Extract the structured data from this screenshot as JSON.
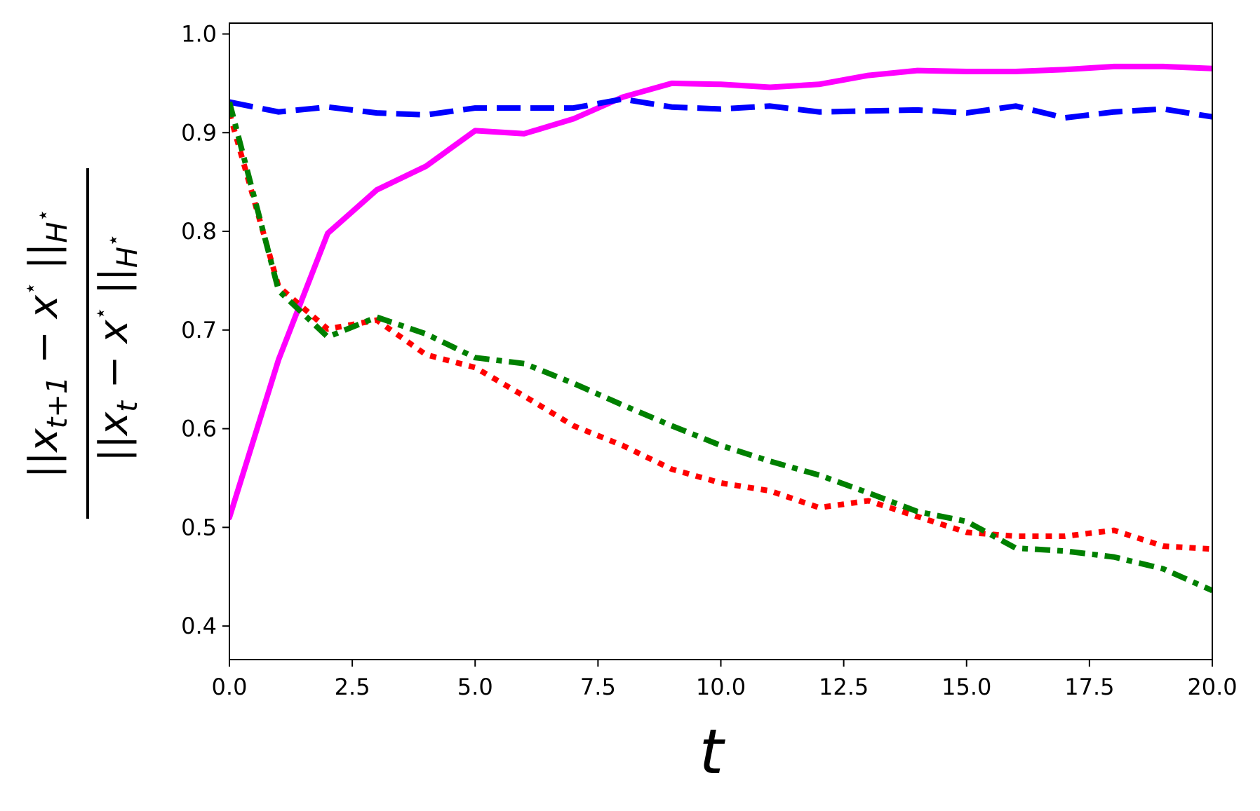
{
  "chart_data": {
    "type": "line",
    "title": "",
    "xlabel": "t",
    "ylabel": {
      "numerator": "||x_{t+1} − x*||_{H*}",
      "denominator": "||x_t − x*||_{H*}"
    },
    "xlim": [
      0,
      20
    ],
    "ylim": [
      0.366,
      1.011
    ],
    "xticks": [
      "0.0",
      "2.5",
      "5.0",
      "7.5",
      "10.0",
      "12.5",
      "15.0",
      "17.5",
      "20.0"
    ],
    "yticks": [
      "0.4",
      "0.5",
      "0.6",
      "0.7",
      "0.8",
      "0.9",
      "1.0"
    ],
    "grid": false,
    "x": [
      0,
      1,
      2,
      3,
      4,
      5,
      6,
      7,
      8,
      9,
      10,
      11,
      12,
      13,
      14,
      15,
      16,
      17,
      18,
      19,
      20
    ],
    "series": [
      {
        "color": "#ff00ff",
        "style": "solid",
        "values": [
          0.51,
          0.67,
          0.798,
          0.842,
          0.866,
          0.902,
          0.899,
          0.914,
          0.936,
          0.95,
          0.949,
          0.946,
          0.949,
          0.958,
          0.963,
          0.962,
          0.962,
          0.964,
          0.967,
          0.967,
          0.965
        ]
      },
      {
        "color": "#0000ff",
        "style": "dashed",
        "values": [
          0.931,
          0.921,
          0.926,
          0.92,
          0.918,
          0.925,
          0.925,
          0.925,
          0.934,
          0.926,
          0.924,
          0.927,
          0.921,
          0.922,
          0.923,
          0.92,
          0.927,
          0.915,
          0.921,
          0.924,
          0.916
        ]
      },
      {
        "color": "#ff0000",
        "style": "dotted",
        "values": [
          0.92,
          0.744,
          0.701,
          0.71,
          0.675,
          0.662,
          0.633,
          0.603,
          0.583,
          0.559,
          0.545,
          0.537,
          0.52,
          0.527,
          0.511,
          0.495,
          0.491,
          0.491,
          0.497,
          0.481,
          0.478
        ]
      },
      {
        "color": "#008000",
        "style": "dashdot",
        "values": [
          0.931,
          0.74,
          0.693,
          0.713,
          0.696,
          0.672,
          0.666,
          0.646,
          0.624,
          0.603,
          0.583,
          0.567,
          0.553,
          0.535,
          0.516,
          0.506,
          0.479,
          0.476,
          0.47,
          0.458,
          0.436
        ]
      }
    ]
  }
}
